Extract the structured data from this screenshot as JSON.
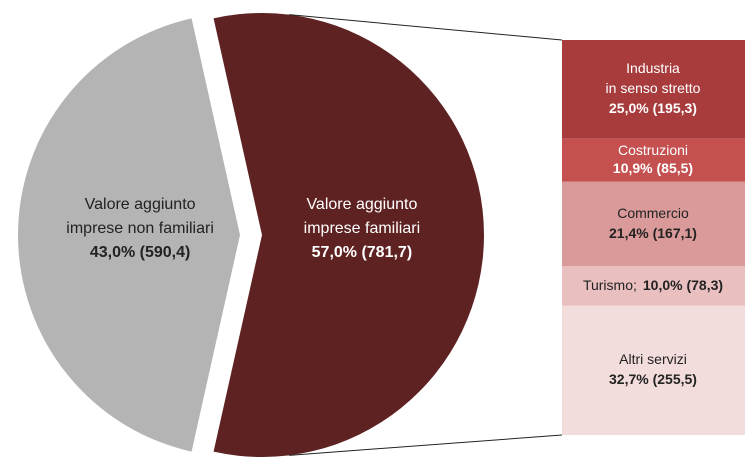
{
  "chart_data": {
    "type": "pie-of-bar",
    "pie": {
      "categories": [
        [
          "Valore aggiunto",
          "imprese non familiari"
        ],
        [
          "Valore aggiunto",
          "imprese familiari"
        ]
      ],
      "values": [
        43.0,
        57.0
      ],
      "value_labels": [
        "43,0% (590,4)",
        "57,0% (781,7)"
      ],
      "colors": [
        "#b4b4b4",
        "#5f2222"
      ]
    },
    "bar": {
      "categories": [
        [
          "Industria",
          "in senso stretto"
        ],
        [
          "Costruzioni"
        ],
        [
          "Commercio"
        ],
        [
          "Turismo;"
        ],
        [
          "Altri servizi"
        ]
      ],
      "values": [
        25.0,
        10.9,
        21.4,
        10.0,
        32.7
      ],
      "value_labels": [
        "25,0% (195,3)",
        "10,9% (85,5)",
        "21,4% (167,1)",
        "10,0% (78,3)",
        "32,7% (255,5)"
      ],
      "colors": [
        "#a83c3c",
        "#c45050",
        "#db9a9a",
        "#e9bfbf",
        "#f3dcdc"
      ]
    }
  }
}
